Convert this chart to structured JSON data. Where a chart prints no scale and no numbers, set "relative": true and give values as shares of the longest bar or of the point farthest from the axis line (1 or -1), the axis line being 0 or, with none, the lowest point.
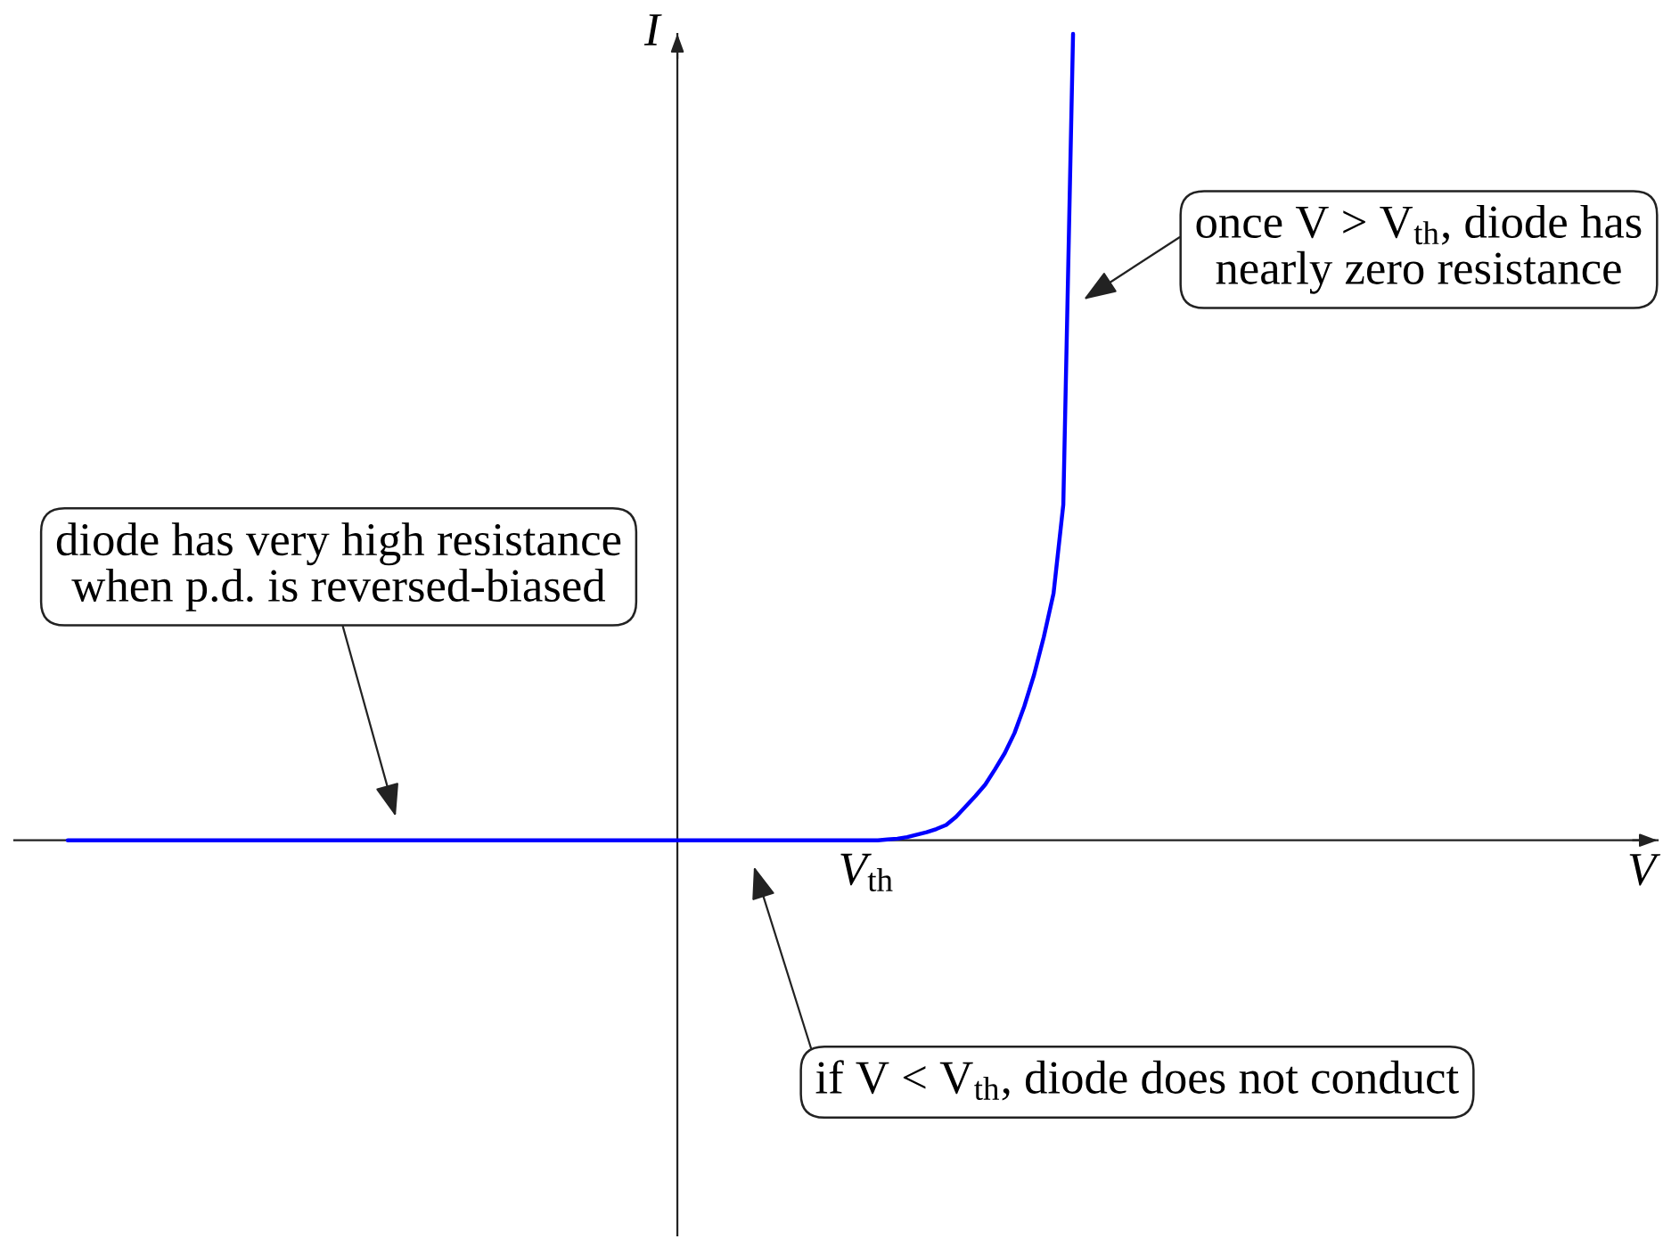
{
  "chart_data": {
    "type": "line",
    "relative": true,
    "ylabel": "I",
    "categories": [
      null,
      null,
      null,
      null,
      null,
      null,
      null,
      null,
      null,
      null,
      null,
      null,
      null,
      null,
      null,
      null,
      null,
      null,
      null,
      null,
      null,
      null,
      null,
      null,
      null,
      null,
      null,
      null,
      null,
      null,
      null,
      null,
      null,
      null,
      null,
      null,
      null,
      null,
      null,
      null,
      null,
      null,
      null,
      null,
      null,
      null,
      null,
      null,
      null,
      null,
      null,
      null,
      null,
      null,
      null,
      null,
      null,
      null,
      null,
      null,
      null,
      null,
      null,
      null,
      null,
      null,
      null,
      null,
      null,
      null,
      null,
      null,
      null,
      null,
      null,
      null,
      null,
      null,
      null,
      null,
      null,
      null,
      null,
      null,
      null,
      null,
      null,
      null,
      null,
      null,
      null,
      null,
      null,
      null,
      null,
      null,
      null,
      null,
      null,
      null,
      null,
      null,
      null,
      null
    ],
    "series": [
      {
        "color": "#0000ff",
        "values": [
          0,
          0,
          0,
          0,
          0,
          0,
          0,
          0,
          0,
          0,
          0,
          0,
          0,
          0,
          0,
          0,
          0,
          0,
          0,
          0,
          0,
          0,
          0,
          0,
          0,
          0,
          0,
          0,
          0,
          0,
          0,
          0,
          0,
          0,
          0,
          0,
          0,
          0,
          0,
          0,
          0,
          0,
          0,
          0,
          0,
          0,
          0,
          0,
          0,
          0,
          0,
          0,
          0,
          0,
          0,
          0,
          0,
          0,
          0,
          0,
          0,
          0,
          0,
          0,
          0,
          0,
          0,
          0,
          0,
          0,
          0,
          0,
          0,
          0,
          0,
          0,
          0,
          0,
          0,
          0,
          0,
          0,
          0,
          0,
          0.001,
          0.002,
          0.004,
          0.007,
          0.01,
          0.014,
          0.019,
          0.029,
          0.042,
          0.055,
          0.069,
          0.088,
          0.108,
          0.133,
          0.166,
          0.205,
          0.252,
          0.306,
          0.416,
          1
        ]
      }
    ],
    "annotations": [
      "once V > V$_{th}$, diode has\nnearly zero resistance",
      "diode has very high resistance\nwhen p.d. is reversed-biased",
      "V$_{th}$",
      "V",
      "if V < V$_{th}$, diode does not conduct"
    ]
  }
}
